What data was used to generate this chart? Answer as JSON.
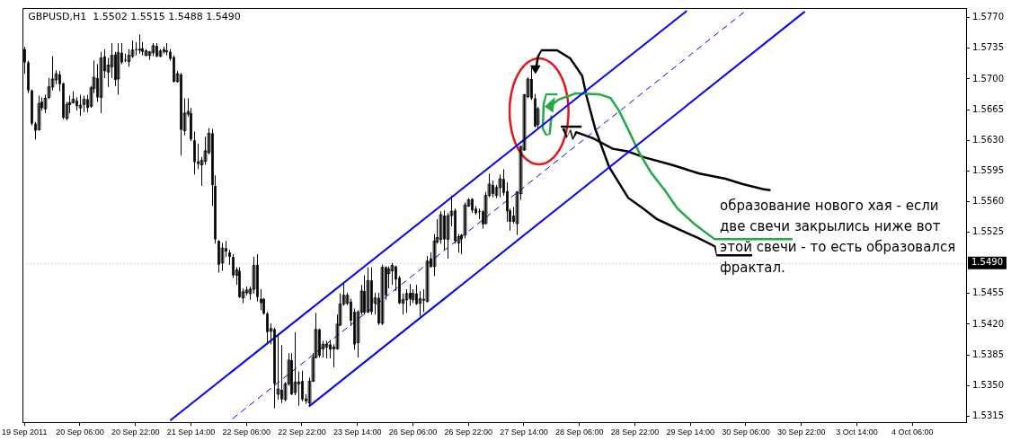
{
  "chart_data": {
    "type": "candlestick",
    "title": "GBPUSD,H1  1.5502 1.5515 1.5488 1.5490",
    "color": "#000000",
    "categories": [
      "19 Sep 2011",
      null,
      null,
      null,
      null,
      null,
      null,
      null,
      null,
      null,
      null,
      null,
      null,
      null,
      null,
      null,
      "20 Sep 06:00",
      null,
      null,
      null,
      null,
      null,
      null,
      null,
      null,
      null,
      null,
      null,
      null,
      null,
      null,
      null,
      "20 Sep 22:00",
      null,
      null,
      null,
      null,
      null,
      null,
      null,
      null,
      null,
      null,
      null,
      null,
      null,
      null,
      null,
      "21 Sep 14:00",
      null,
      null,
      null,
      null,
      null,
      null,
      null,
      null,
      null,
      null,
      null,
      null,
      null,
      null,
      null,
      "22 Sep 06:00",
      null,
      null,
      null,
      null,
      null,
      null,
      null,
      null,
      null,
      null,
      null,
      null,
      null,
      null,
      null,
      "22 Sep 22:00",
      null,
      null,
      null,
      null,
      null,
      null,
      null,
      null,
      null,
      null,
      null,
      null,
      null,
      null,
      null,
      "23 Sep 14:00",
      null,
      null,
      null,
      null,
      null,
      null,
      null,
      null,
      null,
      null,
      null,
      null,
      null,
      null,
      null,
      "26 Sep 06:00",
      null,
      null,
      null,
      null,
      null,
      null,
      null,
      null,
      null,
      null,
      null,
      null,
      null,
      null,
      null,
      "26 Sep 22:00",
      null,
      null,
      null,
      null,
      null,
      null,
      null,
      null,
      null,
      null,
      null,
      null,
      null,
      null,
      null,
      "27 Sep 14:00",
      null,
      null,
      null,
      null,
      null,
      null,
      null,
      null,
      null,
      null,
      null,
      null,
      null,
      null,
      null,
      "28 Sep 06:00",
      null,
      null,
      null,
      null,
      null,
      null,
      null,
      null,
      null,
      null,
      null,
      null,
      null,
      null,
      null,
      "28 Sep 22:00",
      null,
      null,
      null,
      null,
      null,
      null,
      null,
      null,
      null,
      null,
      null,
      null,
      null,
      null,
      null,
      "29 Sep 14:00",
      null,
      null,
      null,
      null,
      null,
      null,
      null,
      null,
      null,
      null,
      null,
      null,
      null,
      null,
      null,
      "30 Sep 06:00",
      null,
      null,
      null,
      null,
      null,
      null,
      null,
      null,
      null,
      null,
      null,
      null,
      null,
      null,
      null,
      "30 Sep 22:00",
      null,
      null,
      null,
      null,
      null,
      null,
      null,
      null,
      null,
      null,
      null,
      null,
      null,
      null,
      null,
      "3 Oct 14:00",
      null,
      null,
      null,
      null,
      null,
      null,
      null,
      null,
      null,
      null,
      null,
      null,
      null,
      null,
      null,
      "4 Oct 06:00",
      null,
      null,
      null,
      null,
      null,
      null,
      null,
      null,
      null,
      null,
      null,
      null,
      null,
      null,
      null
    ],
    "ohlc": [
      [
        1.5734,
        1.5737,
        1.5706,
        1.5719
      ],
      [
        1.5719,
        1.5721,
        1.5684,
        1.5687
      ],
      [
        1.5687,
        1.5688,
        1.5647,
        1.5649
      ],
      [
        1.5649,
        1.5651,
        1.5631,
        1.5641
      ],
      [
        1.5642,
        1.5681,
        1.5641,
        1.5672
      ],
      [
        1.5674,
        1.5679,
        1.5664,
        1.5667
      ],
      [
        1.5666,
        1.5682,
        1.5661,
        1.5678
      ],
      [
        1.5679,
        1.5701,
        1.5677,
        1.5691
      ],
      [
        1.5691,
        1.5726,
        1.5687,
        1.57
      ],
      [
        1.5699,
        1.571,
        1.5694,
        1.5706
      ],
      [
        1.5705,
        1.5709,
        1.5686,
        1.5694
      ],
      [
        1.5695,
        1.5696,
        1.5654,
        1.5656
      ],
      [
        1.5655,
        1.5674,
        1.5653,
        1.5671
      ],
      [
        1.5671,
        1.5681,
        1.5661,
        1.5673
      ],
      [
        1.5673,
        1.5686,
        1.5672,
        1.5677
      ],
      [
        1.5675,
        1.5679,
        1.5664,
        1.5669
      ],
      [
        1.5667,
        1.5682,
        1.5658,
        1.567
      ],
      [
        1.5671,
        1.5681,
        1.5662,
        1.5677
      ],
      [
        1.5677,
        1.5682,
        1.5662,
        1.5667
      ],
      [
        1.5669,
        1.5692,
        1.5667,
        1.569
      ],
      [
        1.5689,
        1.5721,
        1.5684,
        1.5702
      ],
      [
        1.5701,
        1.5717,
        1.5674,
        1.5679
      ],
      [
        1.5679,
        1.5731,
        1.5661,
        1.5724
      ],
      [
        1.5726,
        1.5734,
        1.5701,
        1.5709
      ],
      [
        1.5708,
        1.5724,
        1.5691,
        1.5716
      ],
      [
        1.5714,
        1.5741,
        1.5701,
        1.5727
      ],
      [
        1.5728,
        1.5731,
        1.5692,
        1.5699
      ],
      [
        1.57,
        1.5741,
        1.5682,
        1.573
      ],
      [
        1.573,
        1.5741,
        1.5717,
        1.5719
      ],
      [
        1.5722,
        1.5729,
        1.5719,
        1.5721
      ],
      [
        1.572,
        1.5734,
        1.5714,
        1.5727
      ],
      [
        1.5726,
        1.5744,
        1.5724,
        1.5733
      ],
      [
        1.5734,
        1.5742,
        1.5727,
        1.5733
      ],
      [
        1.5733,
        1.5751,
        1.5729,
        1.5734
      ],
      [
        1.5735,
        1.5742,
        1.5727,
        1.5731
      ],
      [
        1.5727,
        1.5734,
        1.5726,
        1.5732
      ],
      [
        1.5727,
        1.5732,
        1.5722,
        1.5731
      ],
      [
        1.573,
        1.5741,
        1.5726,
        1.5738
      ],
      [
        1.5738,
        1.5741,
        1.5725,
        1.5726
      ],
      [
        1.5726,
        1.5734,
        1.5725,
        1.5732
      ],
      [
        1.5734,
        1.5737,
        1.5729,
        1.5731
      ],
      [
        1.5731,
        1.5741,
        1.5727,
        1.5732
      ],
      [
        1.5731,
        1.5734,
        1.5721,
        1.5723
      ],
      [
        1.5725,
        1.5727,
        1.5696,
        1.5697
      ],
      [
        1.5697,
        1.5709,
        1.5696,
        1.5706
      ],
      [
        1.5705,
        1.5707,
        1.5613,
        1.5642
      ],
      [
        1.5641,
        1.5678,
        1.5636,
        1.5661
      ],
      [
        1.566,
        1.5678,
        1.5657,
        1.5663
      ],
      [
        1.5661,
        1.5667,
        1.5629,
        1.5631
      ],
      [
        1.563,
        1.564,
        1.5591,
        1.5605
      ],
      [
        1.5606,
        1.5626,
        1.5597,
        1.5603
      ],
      [
        1.5602,
        1.5611,
        1.5578,
        1.5607
      ],
      [
        1.5606,
        1.5634,
        1.5602,
        1.5618
      ],
      [
        1.5616,
        1.5644,
        1.5614,
        1.5638
      ],
      [
        1.5638,
        1.5643,
        1.5555,
        1.5579
      ],
      [
        1.5578,
        1.559,
        1.5512,
        1.5517
      ],
      [
        1.5515,
        1.5516,
        1.5479,
        1.5488
      ],
      [
        1.549,
        1.5513,
        1.5481,
        1.5507
      ],
      [
        1.5507,
        1.5515,
        1.5497,
        1.5503
      ],
      [
        1.5502,
        1.5505,
        1.5488,
        1.5497
      ],
      [
        1.5497,
        1.55,
        1.5473,
        1.5476
      ],
      [
        1.5476,
        1.5485,
        1.5465,
        1.5482
      ],
      [
        1.5481,
        1.5485,
        1.545,
        1.5451
      ],
      [
        1.545,
        1.5461,
        1.5444,
        1.5457
      ],
      [
        1.5456,
        1.5463,
        1.5453,
        1.5459
      ],
      [
        1.5455,
        1.5463,
        1.5448,
        1.546
      ],
      [
        1.546,
        1.5497,
        1.5455,
        1.5487
      ],
      [
        1.5488,
        1.55,
        1.5446,
        1.5451
      ],
      [
        1.5449,
        1.546,
        1.5436,
        1.5444
      ],
      [
        1.5449,
        1.545,
        1.5431,
        1.5432
      ],
      [
        1.5432,
        1.5434,
        1.5399,
        1.5411
      ],
      [
        1.5412,
        1.5421,
        1.5397,
        1.5415
      ],
      [
        1.5414,
        1.5416,
        1.5324,
        1.5352
      ],
      [
        1.534,
        1.5408,
        1.5334,
        1.5346
      ],
      [
        1.5345,
        1.5396,
        1.533,
        1.5334
      ],
      [
        1.5334,
        1.5354,
        1.5332,
        1.5352
      ],
      [
        1.5352,
        1.5387,
        1.535,
        1.5379
      ],
      [
        1.5379,
        1.5387,
        1.5339,
        1.534
      ],
      [
        1.5342,
        1.5411,
        1.5339,
        1.5354
      ],
      [
        1.5352,
        1.5366,
        1.5327,
        1.5354
      ],
      [
        1.5355,
        1.5367,
        1.5332,
        1.5334
      ],
      [
        1.5335,
        1.534,
        1.5329,
        1.5332
      ],
      [
        1.533,
        1.5359,
        1.5327,
        1.5355
      ],
      [
        1.5355,
        1.5387,
        1.5354,
        1.5382
      ],
      [
        1.5382,
        1.5433,
        1.5381,
        1.5414
      ],
      [
        1.5414,
        1.5415,
        1.5382,
        1.5384
      ],
      [
        1.5392,
        1.5401,
        1.5382,
        1.5397
      ],
      [
        1.5394,
        1.5401,
        1.5381,
        1.5397
      ],
      [
        1.5397,
        1.5402,
        1.5381,
        1.5391
      ],
      [
        1.5392,
        1.5397,
        1.5371,
        1.5394
      ],
      [
        1.5392,
        1.5431,
        1.5391,
        1.542
      ],
      [
        1.5419,
        1.5455,
        1.5418,
        1.5443
      ],
      [
        1.5443,
        1.5468,
        1.5441,
        1.5453
      ],
      [
        1.5444,
        1.5456,
        1.5442,
        1.5453
      ],
      [
        1.5446,
        1.5449,
        1.5418,
        1.5424
      ],
      [
        1.5434,
        1.5438,
        1.5391,
        1.5397
      ],
      [
        1.5399,
        1.5436,
        1.5382,
        1.5434
      ],
      [
        1.5434,
        1.5465,
        1.5431,
        1.5458
      ],
      [
        1.5458,
        1.5476,
        1.5431,
        1.5433
      ],
      [
        1.5434,
        1.5485,
        1.5433,
        1.547
      ],
      [
        1.547,
        1.5485,
        1.5431,
        1.5434
      ],
      [
        1.5444,
        1.5456,
        1.5431,
        1.545
      ],
      [
        1.545,
        1.5456,
        1.5419,
        1.5421
      ],
      [
        1.5421,
        1.5488,
        1.5419,
        1.5485
      ],
      [
        1.5485,
        1.5486,
        1.5448,
        1.5453
      ],
      [
        1.5478,
        1.5486,
        1.5461,
        1.5483
      ],
      [
        1.5481,
        1.549,
        1.5465,
        1.5487
      ],
      [
        1.5486,
        1.5487,
        1.5458,
        1.5471
      ],
      [
        1.5473,
        1.5475,
        1.5443,
        1.5444
      ],
      [
        1.5444,
        1.5455,
        1.5431,
        1.5448
      ],
      [
        1.5448,
        1.546,
        1.5433,
        1.5455
      ],
      [
        1.5456,
        1.5466,
        1.5441,
        1.5449
      ],
      [
        1.5448,
        1.546,
        1.5444,
        1.5455
      ],
      [
        1.5455,
        1.5465,
        1.5442,
        1.5443
      ],
      [
        1.5444,
        1.5458,
        1.5429,
        1.5449
      ],
      [
        1.5449,
        1.546,
        1.5434,
        1.5447
      ],
      [
        1.5446,
        1.5498,
        1.5445,
        1.5492
      ],
      [
        1.5495,
        1.5502,
        1.5485,
        1.5485
      ],
      [
        1.5486,
        1.5523,
        1.5475,
        1.5515
      ],
      [
        1.5514,
        1.554,
        1.5512,
        1.5519
      ],
      [
        1.5517,
        1.5549,
        1.5512,
        1.5545
      ],
      [
        1.5544,
        1.555,
        1.5505,
        1.5517
      ],
      [
        1.5517,
        1.5547,
        1.5495,
        1.5544
      ],
      [
        1.5544,
        1.5567,
        1.5532,
        1.5549
      ],
      [
        1.555,
        1.5552,
        1.5512,
        1.5515
      ],
      [
        1.5513,
        1.5523,
        1.5502,
        1.552
      ],
      [
        1.5522,
        1.5523,
        1.55,
        1.5517
      ],
      [
        1.5522,
        1.5559,
        1.5518,
        1.5556
      ],
      [
        1.5555,
        1.5564,
        1.5554,
        1.5562
      ],
      [
        1.5563,
        1.5564,
        1.5547,
        1.555
      ],
      [
        1.5552,
        1.5555,
        1.5545,
        1.5547
      ],
      [
        1.5549,
        1.5552,
        1.554,
        1.5548
      ],
      [
        1.5549,
        1.555,
        1.5529,
        1.5534
      ],
      [
        1.5535,
        1.5571,
        1.5534,
        1.5567
      ],
      [
        1.5567,
        1.5592,
        1.5565,
        1.558
      ],
      [
        1.5579,
        1.5584,
        1.5565,
        1.5569
      ],
      [
        1.5567,
        1.5579,
        1.5564,
        1.5576
      ],
      [
        1.5576,
        1.5591,
        1.5565,
        1.5586
      ],
      [
        1.5586,
        1.5597,
        1.5567,
        1.557
      ],
      [
        1.5572,
        1.5582,
        1.5537,
        1.5549
      ],
      [
        1.555,
        1.5552,
        1.5527,
        1.5537
      ],
      [
        1.5544,
        1.5554,
        1.5535,
        1.5537
      ],
      [
        1.5535,
        1.5572,
        1.5522,
        1.5571
      ],
      [
        1.5569,
        1.5624,
        1.5562,
        1.5623
      ],
      [
        1.5619,
        1.5683,
        1.5618,
        1.5682
      ],
      [
        1.568,
        1.5702,
        1.5678,
        1.57
      ],
      [
        1.57,
        1.5713,
        1.5676,
        1.5678
      ],
      [
        1.5678,
        1.5683,
        1.5645,
        1.5646
      ],
      [
        1.5648,
        1.5668,
        1.5643,
        1.5666
      ],
      null,
      null,
      null,
      null,
      null,
      null,
      null,
      null,
      null,
      null,
      null,
      null,
      null,
      null,
      null,
      null,
      null,
      null,
      null,
      null,
      null,
      null,
      null,
      null,
      null,
      null,
      null,
      null,
      null,
      null,
      null,
      null,
      null,
      null,
      null,
      null,
      null,
      null,
      null,
      null,
      null,
      null,
      null,
      null,
      null,
      null,
      null,
      null,
      null,
      null,
      null,
      null,
      null,
      null,
      null,
      null,
      null,
      null,
      null,
      null,
      null,
      null,
      null,
      null,
      null,
      null,
      null,
      null,
      null,
      null,
      null,
      null,
      null,
      null,
      null,
      null,
      null,
      null,
      null,
      null,
      null,
      null,
      null,
      null,
      null,
      null,
      null,
      null,
      null,
      null,
      null,
      null,
      null,
      null,
      null,
      null,
      null,
      null,
      null,
      null,
      null,
      null,
      null,
      null,
      null,
      null,
      null,
      null,
      null,
      null,
      null,
      null,
      null,
      null,
      null,
      null,
      null,
      null,
      null,
      null,
      null,
      null,
      null
    ],
    "series": [
      {
        "type": "line",
        "color": "#0000ff",
        "line_style": "solid",
        "values": [
          null,
          null,
          null,
          null,
          null,
          null,
          null,
          null,
          null,
          null,
          null,
          null,
          null,
          null,
          null,
          null,
          null,
          null,
          null,
          null,
          null,
          null,
          null,
          null,
          null,
          null,
          null,
          null,
          null,
          null,
          null,
          null,
          null,
          null,
          null,
          null,
          null,
          null,
          null,
          null,
          null,
          null,
          1.531,
          null,
          null,
          null,
          null,
          null,
          null,
          null,
          null,
          null,
          null,
          null,
          null,
          null,
          null,
          null,
          null,
          null,
          null,
          null,
          null,
          null,
          null,
          null,
          null,
          null,
          null,
          null,
          null,
          null,
          null,
          null,
          null,
          null,
          null,
          null,
          null,
          null,
          null,
          null,
          null,
          null,
          null,
          null,
          null,
          null,
          null,
          null,
          null,
          null,
          null,
          null,
          null,
          null,
          null,
          null,
          null,
          null,
          null,
          null,
          null,
          null,
          null,
          null,
          null,
          null,
          null,
          null,
          null,
          null,
          null,
          null,
          null,
          null,
          null,
          null,
          null,
          null,
          null,
          null,
          null,
          null,
          null,
          null,
          null,
          null,
          null,
          null,
          null,
          null,
          null,
          null,
          null,
          null,
          null,
          null,
          null,
          null,
          null,
          null,
          null,
          null,
          null,
          null,
          null,
          null,
          null,
          null,
          null,
          null,
          null,
          null,
          null,
          null,
          null,
          null,
          null,
          null,
          null,
          null,
          null,
          null,
          null,
          null,
          null,
          null,
          null,
          null,
          null,
          null,
          null,
          null,
          null,
          null,
          null,
          null,
          null,
          null,
          null,
          null,
          null,
          null,
          null,
          null,
          null,
          null,
          null,
          null,
          null,
          1.5778,
          null,
          null,
          null,
          null,
          null,
          null,
          null,
          null,
          null,
          null,
          null,
          null,
          null,
          null,
          null,
          null,
          null,
          null,
          null,
          null,
          null,
          null,
          null,
          null,
          null,
          null,
          null,
          null,
          null,
          null,
          null,
          null,
          null,
          null,
          null,
          null,
          null,
          null,
          null,
          null,
          null,
          null,
          null,
          null,
          null,
          null,
          null,
          null,
          null,
          null,
          null,
          null,
          null,
          null,
          null,
          null,
          null,
          null,
          null,
          null,
          null,
          null,
          null,
          null,
          null,
          null,
          null,
          null,
          null,
          null,
          null,
          null,
          null,
          null,
          null,
          null,
          null,
          null,
          null,
          null
        ]
      },
      {
        "type": "line",
        "color": "#0000ff",
        "line_style": "dashed",
        "values": [
          null,
          null,
          null,
          null,
          null,
          null,
          null,
          null,
          null,
          null,
          null,
          null,
          null,
          null,
          null,
          null,
          null,
          null,
          null,
          null,
          null,
          null,
          null,
          null,
          null,
          null,
          null,
          null,
          null,
          null,
          null,
          null,
          null,
          null,
          null,
          null,
          null,
          null,
          null,
          null,
          null,
          null,
          null,
          null,
          null,
          null,
          null,
          null,
          null,
          null,
          null,
          null,
          null,
          null,
          null,
          null,
          null,
          null,
          null,
          null,
          1.5312,
          null,
          null,
          null,
          null,
          null,
          null,
          null,
          null,
          null,
          null,
          null,
          null,
          null,
          null,
          null,
          null,
          null,
          null,
          null,
          null,
          null,
          null,
          null,
          null,
          null,
          null,
          null,
          null,
          null,
          null,
          null,
          null,
          null,
          null,
          null,
          null,
          null,
          null,
          null,
          null,
          null,
          null,
          null,
          null,
          null,
          null,
          null,
          null,
          null,
          null,
          null,
          null,
          null,
          null,
          null,
          null,
          null,
          null,
          null,
          null,
          null,
          null,
          null,
          null,
          null,
          null,
          null,
          null,
          null,
          null,
          null,
          null,
          null,
          null,
          null,
          null,
          null,
          null,
          null,
          null,
          null,
          null,
          null,
          null,
          null,
          null,
          null,
          null,
          null,
          null,
          null,
          null,
          null,
          null,
          null,
          null,
          null,
          null,
          null,
          null,
          null,
          null,
          null,
          null,
          null,
          null,
          null,
          null,
          null,
          null,
          null,
          null,
          null,
          null,
          null,
          null,
          null,
          null,
          null,
          null,
          null,
          null,
          null,
          null,
          null,
          null,
          null,
          null,
          null,
          null,
          null,
          null,
          null,
          null,
          null,
          null,
          null,
          null,
          null,
          null,
          null,
          null,
          null,
          null,
          null,
          null,
          null,
          1.5778,
          null,
          null,
          null,
          null,
          null,
          null,
          null,
          null,
          null,
          null,
          null,
          null,
          null,
          null,
          null,
          null,
          null,
          null,
          null,
          null,
          null,
          null,
          null,
          null,
          null,
          null,
          null,
          null,
          null,
          null,
          null,
          null,
          null,
          null,
          null,
          null,
          null,
          null,
          null,
          null,
          null,
          null,
          null,
          null,
          null,
          null,
          null,
          null,
          null,
          null,
          null,
          null,
          null,
          null,
          null,
          null,
          null,
          null,
          null,
          null,
          null,
          null,
          null
        ]
      },
      {
        "type": "line",
        "color": "#0000ff",
        "line_style": "solid",
        "values": [
          null,
          null,
          null,
          null,
          null,
          null,
          null,
          null,
          null,
          null,
          null,
          null,
          null,
          null,
          null,
          null,
          null,
          null,
          null,
          null,
          null,
          null,
          null,
          null,
          null,
          null,
          null,
          null,
          null,
          null,
          null,
          null,
          null,
          null,
          null,
          null,
          null,
          null,
          null,
          null,
          null,
          null,
          null,
          null,
          null,
          null,
          null,
          null,
          null,
          null,
          null,
          null,
          null,
          null,
          null,
          null,
          null,
          null,
          null,
          null,
          null,
          null,
          null,
          null,
          null,
          null,
          null,
          null,
          null,
          null,
          null,
          null,
          null,
          null,
          null,
          null,
          null,
          null,
          null,
          null,
          null,
          null,
          1.5326,
          null,
          null,
          null,
          null,
          null,
          null,
          null,
          null,
          null,
          null,
          null,
          null,
          null,
          null,
          null,
          null,
          null,
          null,
          null,
          null,
          null,
          null,
          null,
          null,
          null,
          null,
          null,
          null,
          null,
          null,
          null,
          null,
          null,
          null,
          null,
          null,
          null,
          null,
          null,
          null,
          null,
          null,
          null,
          null,
          null,
          null,
          null,
          null,
          null,
          null,
          null,
          null,
          null,
          null,
          null,
          null,
          null,
          null,
          null,
          null,
          null,
          null,
          null,
          null,
          null,
          null,
          null,
          null,
          null,
          null,
          null,
          null,
          null,
          null,
          null,
          null,
          null,
          null,
          null,
          null,
          null,
          null,
          null,
          null,
          null,
          null,
          null,
          null,
          null,
          null,
          null,
          null,
          null,
          null,
          null,
          null,
          null,
          null,
          null,
          null,
          null,
          null,
          null,
          null,
          null,
          null,
          null,
          null,
          null,
          null,
          null,
          null,
          null,
          null,
          null,
          null,
          null,
          null,
          null,
          null,
          null,
          null,
          null,
          null,
          null,
          null,
          null,
          null,
          null,
          null,
          null,
          null,
          null,
          null,
          null,
          null,
          null,
          null,
          null,
          null,
          null,
          null,
          1.5777,
          null,
          null,
          null,
          null,
          null,
          null,
          null,
          null,
          null,
          null,
          null,
          null,
          null,
          null,
          null,
          null,
          null,
          null,
          null,
          null,
          null,
          null,
          null,
          null,
          null,
          null,
          null,
          null,
          null,
          null,
          null,
          null,
          null,
          null,
          null,
          null,
          null,
          null,
          null,
          null,
          null,
          null,
          null,
          null,
          null,
          null
        ]
      }
    ],
    "ylim": [
      1.5308,
      1.5781
    ],
    "yticks": [
      {
        "value": 1.5315,
        "label": "1.5315"
      },
      {
        "value": 1.535,
        "label": "1.5350"
      },
      {
        "value": 1.5385,
        "label": "1.5385"
      },
      {
        "value": 1.542,
        "label": "1.5420"
      },
      {
        "value": 1.5455,
        "label": "1.5455"
      },
      {
        "value": 1.5525,
        "label": "1.5525"
      },
      {
        "value": 1.556,
        "label": "1.5560"
      },
      {
        "value": 1.5595,
        "label": "1.5595"
      },
      {
        "value": 1.563,
        "label": "1.5630"
      },
      {
        "value": 1.5665,
        "label": "1.5665"
      },
      {
        "value": 1.57,
        "label": "1.5700"
      },
      {
        "value": 1.5735,
        "label": "1.5735"
      },
      {
        "value": 1.577,
        "label": "1.5770"
      }
    ],
    "ref_lines": [
      {
        "axis": "y",
        "value": 1.549,
        "label": "1.5490",
        "color": "#c8a0c8",
        "line_style": "dotted"
      }
    ],
    "annotations": [
      "образование нового хая - если две свечи закрылись ниже вот этой свечи - то есть образовался фрактал."
    ]
  }
}
